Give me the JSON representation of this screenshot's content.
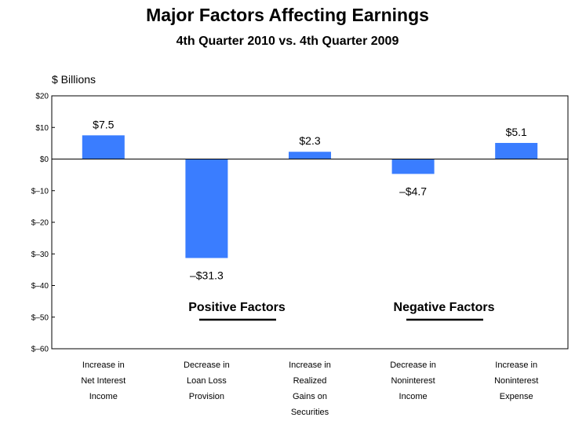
{
  "chart_data": {
    "type": "bar",
    "title": "Major Factors Affecting Earnings",
    "subtitle": "4th Quarter 2010 vs. 4th Quarter 2009",
    "ylabel": "$ Billions",
    "ylim": [
      -60,
      20
    ],
    "yticks": [
      20,
      10,
      0,
      -10,
      -20,
      -30,
      -40,
      -50,
      -60
    ],
    "ytick_labels": [
      "$20",
      "$10",
      "$0",
      "$–10",
      "$–20",
      "$–30",
      "$–40",
      "$–50",
      "$–60"
    ],
    "categories": [
      "Increase in Net Interest Income",
      "Decrease in Loan Loss Provision",
      "Increase in Realized Gains on Securities",
      "Decrease in Noninterest Income",
      "Increase in Noninterest Expense"
    ],
    "category_lines": [
      [
        "Increase in",
        "Net Interest",
        "Income"
      ],
      [
        "Decrease in",
        "Loan Loss",
        "Provision"
      ],
      [
        "Increase in",
        "Realized",
        "Gains on",
        "Securities"
      ],
      [
        "Decrease in",
        "Noninterest",
        "Income"
      ],
      [
        "Increase in",
        "Noninterest",
        "Expense"
      ]
    ],
    "values": [
      7.5,
      -31.3,
      2.3,
      -4.7,
      5.1
    ],
    "data_labels": [
      "$7.5",
      "–$31.3",
      "$2.3",
      "–$4.7",
      "$5.1"
    ],
    "annotations": [
      "Positive Factors",
      "Negative Factors"
    ],
    "bar_color": "#3a7dff",
    "grid": false
  }
}
